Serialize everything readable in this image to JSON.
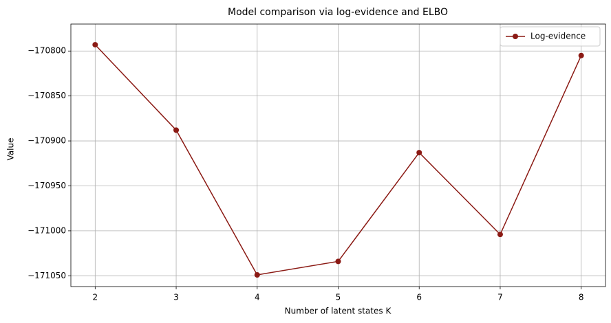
{
  "chart_data": {
    "type": "line",
    "title": "Model comparison via log-evidence and ELBO",
    "xlabel": "Number of latent states K",
    "ylabel": "Value",
    "x": [
      2,
      3,
      4,
      5,
      6,
      7,
      8
    ],
    "series": [
      {
        "name": "Log-evidence",
        "color": "#8b1a14",
        "marker": "o",
        "values": [
          -170793,
          -170888,
          -171049,
          -171034,
          -170913,
          -171004,
          -170805
        ]
      }
    ],
    "xlim": [
      1.7,
      8.3
    ],
    "ylim": [
      -171062,
      -170770
    ],
    "xticks": [
      2,
      3,
      4,
      5,
      6,
      7,
      8
    ],
    "yticks": [
      {
        "value": -170800,
        "label": "−170800"
      },
      {
        "value": -170850,
        "label": "−170850"
      },
      {
        "value": -170900,
        "label": "−170900"
      },
      {
        "value": -170950,
        "label": "−170950"
      },
      {
        "value": -171000,
        "label": "−171000"
      },
      {
        "value": -171050,
        "label": "−171050"
      }
    ],
    "grid": true,
    "legend": "upper right"
  }
}
